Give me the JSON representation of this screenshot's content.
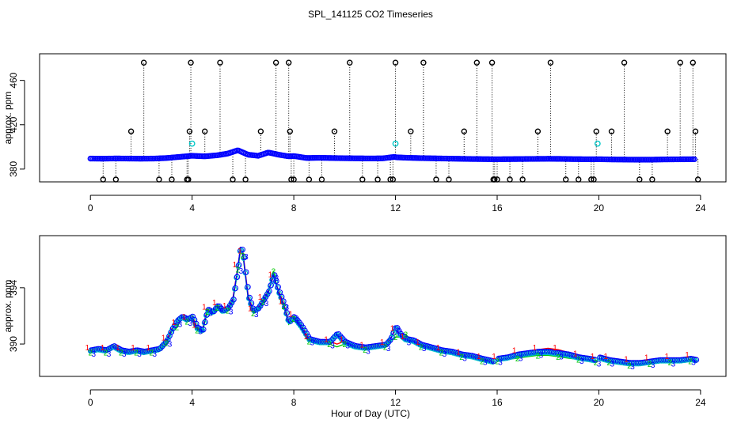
{
  "figure": {
    "title": "SPL_141125  CO2 Timeseries",
    "xlabel": "Hour of Day (UTC)"
  },
  "colors": {
    "series1_line": "#ff0000",
    "series2_line": "#00c800",
    "series3_line": "#0000ff",
    "circle_outer": "#0000ff",
    "circle_inner": "#00c8c8",
    "outlier": "#000000",
    "flagged": "#00c8c8"
  },
  "chart_data": [
    {
      "type": "scatter",
      "panel": "top",
      "ylabel": "approx. ppm",
      "xlim": [
        -2,
        25
      ],
      "ylim": [
        368.5,
        484
      ],
      "xticks": [
        0,
        4,
        8,
        12,
        16,
        20,
        24
      ],
      "yticks": [
        380,
        420,
        460
      ],
      "grid": false,
      "baseline": {
        "x": [
          0.0,
          0.5,
          1.0,
          1.5,
          2.0,
          2.5,
          3.0,
          3.5,
          4.0,
          4.5,
          5.0,
          5.4,
          5.8,
          6.2,
          6.6,
          7.0,
          7.4,
          7.8,
          8.0,
          8.5,
          9.0,
          9.5,
          10.0,
          10.5,
          11.0,
          11.5,
          11.95,
          12.05,
          12.5,
          13.0,
          13.5,
          14.0,
          14.5,
          15.0,
          15.5,
          15.85,
          16.0,
          16.5,
          17.0,
          17.5,
          18.0,
          18.5,
          19.0,
          19.5,
          19.85,
          20.05,
          20.5,
          21.0,
          21.5,
          22.0,
          22.5,
          23.0,
          23.5,
          23.8
        ],
        "y": [
          389.5,
          389.4,
          389.6,
          389.5,
          389.4,
          389.5,
          390.0,
          391.0,
          392.0,
          391.5,
          392.5,
          394.0,
          397.0,
          393.0,
          392.0,
          395.0,
          393.0,
          391.5,
          391.8,
          390.0,
          390.2,
          390.0,
          389.8,
          389.7,
          389.6,
          389.7,
          391.0,
          390.6,
          390.2,
          389.9,
          389.7,
          389.5,
          389.3,
          389.1,
          389.0,
          388.9,
          388.9,
          389.0,
          389.1,
          389.2,
          389.3,
          389.2,
          389.0,
          388.9,
          388.9,
          388.9,
          388.7,
          388.6,
          388.5,
          388.5,
          388.7,
          388.8,
          388.9,
          388.9
        ]
      },
      "outliers": {
        "x": [
          0.5,
          1.0,
          1.6,
          2.1,
          2.7,
          3.2,
          3.8,
          3.85,
          3.9,
          3.95,
          4.5,
          5.1,
          5.6,
          6.1,
          6.7,
          7.3,
          7.8,
          7.85,
          7.9,
          8.0,
          8.6,
          9.1,
          9.6,
          10.2,
          10.7,
          11.3,
          11.8,
          11.9,
          12.0,
          12.6,
          13.1,
          13.6,
          14.1,
          14.7,
          15.2,
          15.8,
          15.85,
          15.9,
          16.0,
          16.5,
          17.0,
          17.6,
          18.1,
          18.7,
          19.2,
          19.7,
          19.8,
          19.9,
          20.5,
          21.0,
          21.6,
          22.1,
          22.7,
          23.2,
          23.7,
          23.8,
          23.9
        ],
        "y": [
          350,
          361,
          414,
          476,
          350,
          361,
          350,
          361,
          414,
          476,
          414,
          476,
          350,
          361,
          414,
          476,
          476,
          414,
          361,
          350,
          350,
          361,
          414,
          476,
          350,
          361,
          350,
          361,
          476,
          414,
          476,
          350,
          361,
          414,
          476,
          476,
          361,
          350,
          350,
          350,
          361,
          414,
          476,
          350,
          361,
          350,
          361,
          414,
          414,
          476,
          350,
          361,
          414,
          476,
          476,
          414,
          361
        ]
      },
      "flagged": {
        "x": [
          4.0,
          12.0,
          19.95
        ],
        "y": [
          403,
          403,
          403
        ]
      }
    },
    {
      "type": "line",
      "panel": "bottom",
      "ylabel": "approx. ppm",
      "xlim": [
        -2,
        25
      ],
      "ylim": [
        387.7,
        397.7
      ],
      "xticks": [
        0,
        4,
        8,
        12,
        16,
        20,
        24
      ],
      "yticks": [
        390,
        394
      ],
      "grid": false,
      "gaps_after_hour": [
        15.88,
        19.88
      ],
      "x": [
        0.0,
        0.3,
        0.6,
        0.9,
        1.2,
        1.5,
        1.8,
        2.1,
        2.4,
        2.7,
        3.0,
        3.2,
        3.4,
        3.6,
        3.8,
        4.0,
        4.2,
        4.4,
        4.6,
        4.8,
        5.0,
        5.2,
        5.4,
        5.6,
        5.8,
        5.9,
        6.0,
        6.2,
        6.4,
        6.6,
        6.8,
        7.0,
        7.2,
        7.4,
        7.6,
        7.8,
        8.0,
        8.3,
        8.6,
        9.0,
        9.4,
        9.7,
        10.0,
        10.4,
        10.8,
        11.2,
        11.6,
        11.8,
        12.0,
        12.2,
        12.4,
        12.7,
        13.0,
        13.4,
        13.8,
        14.2,
        14.6,
        15.0,
        15.4,
        15.88,
        16.0,
        16.4,
        16.8,
        17.2,
        17.6,
        18.0,
        18.4,
        18.8,
        19.2,
        19.6,
        19.88,
        20.0,
        20.4,
        20.8,
        21.2,
        21.6,
        22.0,
        22.4,
        22.8,
        23.2,
        23.6,
        23.85
      ],
      "series": [
        {
          "values": [
            389.6,
            389.7,
            389.6,
            389.9,
            389.6,
            389.5,
            389.6,
            389.5,
            389.6,
            389.7,
            390.3,
            391.1,
            391.4,
            392.0,
            391.8,
            392.0,
            391.2,
            391.0,
            392.5,
            392.3,
            392.8,
            392.4,
            392.6,
            393.2,
            395.5,
            396.8,
            396.5,
            393.5,
            392.4,
            392.6,
            393.2,
            393.8,
            394.8,
            393.8,
            392.9,
            391.6,
            392.0,
            391.3,
            390.4,
            390.2,
            390.2,
            390.0,
            390.2,
            389.9,
            389.8,
            389.9,
            390.0,
            390.4,
            391.0,
            390.7,
            390.4,
            390.3,
            390.0,
            389.8,
            389.6,
            389.5,
            389.3,
            389.2,
            389.0,
            388.8,
            389.0,
            389.2,
            389.4,
            389.5,
            389.6,
            389.7,
            389.6,
            389.4,
            389.2,
            389.1,
            389.0,
            389.2,
            389.0,
            388.9,
            388.8,
            388.8,
            388.9,
            389.0,
            389.0,
            389.0,
            389.1,
            389.0
          ]
        },
        {
          "values": [
            389.4,
            389.5,
            389.4,
            389.7,
            389.4,
            389.3,
            389.4,
            389.3,
            389.4,
            389.5,
            390.1,
            390.9,
            391.2,
            391.8,
            391.6,
            391.8,
            391.0,
            390.8,
            392.3,
            392.1,
            392.6,
            392.2,
            392.4,
            393.0,
            395.3,
            396.6,
            396.3,
            393.3,
            392.2,
            392.4,
            393.0,
            393.6,
            395.2,
            393.6,
            392.7,
            391.4,
            391.8,
            391.1,
            390.2,
            390.0,
            390.0,
            389.8,
            390.0,
            389.7,
            389.6,
            389.7,
            389.8,
            390.2,
            390.5,
            390.5,
            390.7,
            390.1,
            389.8,
            389.6,
            389.4,
            389.3,
            389.1,
            389.0,
            388.8,
            388.6,
            388.8,
            388.9,
            389.0,
            389.1,
            389.2,
            389.2,
            389.1,
            389.0,
            388.9,
            388.8,
            388.7,
            388.9,
            388.7,
            388.6,
            388.5,
            388.5,
            388.6,
            388.7,
            388.7,
            388.7,
            388.8,
            388.7
          ]
        },
        {
          "values": [
            389.5,
            389.6,
            389.5,
            389.8,
            389.5,
            389.4,
            389.5,
            389.4,
            389.5,
            389.6,
            390.2,
            391.0,
            391.6,
            391.9,
            391.7,
            391.9,
            391.1,
            390.9,
            392.4,
            392.2,
            392.7,
            392.3,
            392.5,
            393.1,
            395.4,
            396.9,
            396.4,
            393.4,
            392.3,
            392.5,
            393.1,
            393.7,
            394.9,
            393.7,
            392.8,
            391.5,
            391.9,
            391.2,
            390.3,
            390.1,
            390.1,
            390.7,
            390.1,
            389.8,
            389.7,
            389.8,
            389.9,
            390.3,
            391.2,
            390.6,
            390.3,
            390.2,
            389.9,
            389.7,
            389.5,
            389.4,
            389.2,
            389.1,
            388.9,
            388.7,
            388.9,
            389.0,
            389.2,
            389.3,
            389.4,
            389.4,
            389.3,
            389.2,
            389.0,
            388.9,
            388.8,
            389.0,
            388.8,
            388.7,
            388.6,
            388.6,
            388.7,
            388.8,
            388.8,
            388.8,
            388.9,
            388.8
          ]
        }
      ]
    }
  ]
}
